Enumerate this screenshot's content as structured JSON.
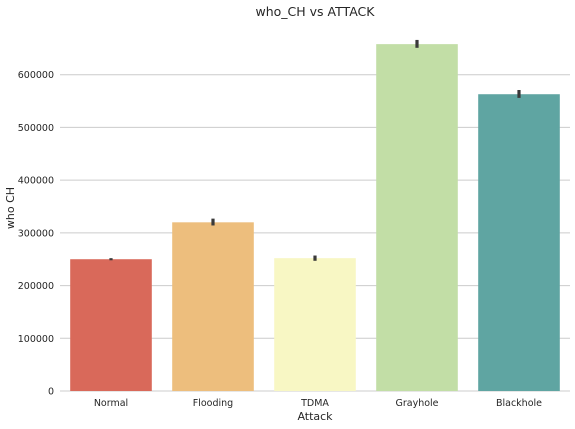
{
  "chart_data": {
    "type": "bar",
    "title": "who_CH vs ATTACK",
    "xlabel": "Attack",
    "ylabel": "who CH",
    "categories": [
      "Normal",
      "Flooding",
      "TDMA",
      "Grayhole",
      "Blackhole"
    ],
    "values": [
      250000,
      320000,
      252000,
      658000,
      563000
    ],
    "error_bars": [
      [
        248000,
        252000
      ],
      [
        314000,
        327000
      ],
      [
        247000,
        257000
      ],
      [
        651000,
        666000
      ],
      [
        556000,
        571000
      ]
    ],
    "colors": [
      "#d9695a",
      "#edbe7d",
      "#f8f7c4",
      "#c2dea6",
      "#5fa5a2"
    ],
    "errorbar_color": "#3a3a3a",
    "ylim": [
      0,
      700000
    ],
    "yticks": [
      0,
      100000,
      200000,
      300000,
      400000,
      500000,
      600000
    ],
    "ytick_labels": [
      "0",
      "100000",
      "200000",
      "300000",
      "400000",
      "500000",
      "600000"
    ],
    "grid": "horizontal",
    "background": "#ffffff",
    "grid_color": "#cccccc"
  }
}
